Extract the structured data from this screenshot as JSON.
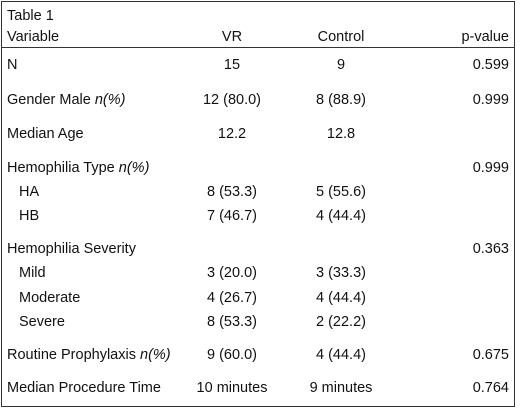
{
  "table": {
    "title": "Table 1",
    "headers": {
      "variable": "Variable",
      "vr": "VR",
      "control": "Control",
      "pvalue": "p-value"
    },
    "rows": [
      {
        "label": "N",
        "suffix": "",
        "vr": "15",
        "control": "9",
        "p": "0.599"
      },
      {
        "label": "Gender Male ",
        "suffix": "n(%)",
        "vr": "12 (80.0)",
        "control": "8 (88.9)",
        "p": "0.999"
      },
      {
        "label": "Median Age",
        "suffix": "",
        "vr": "12.2",
        "control": "12.8",
        "p": ""
      },
      {
        "label": "Hemophilia Type ",
        "suffix": "n(%)",
        "vr": "",
        "control": "",
        "p": "0.999"
      },
      {
        "label": "HA",
        "suffix": "",
        "vr": "8 (53.3)",
        "control": "5 (55.6)",
        "p": ""
      },
      {
        "label": "HB",
        "suffix": "",
        "vr": "7 (46.7)",
        "control": "4 (44.4)",
        "p": ""
      },
      {
        "label": "Hemophilia Severity",
        "suffix": "",
        "vr": "",
        "control": "",
        "p": "0.363"
      },
      {
        "label": "Mild",
        "suffix": "",
        "vr": "3 (20.0)",
        "control": "3 (33.3)",
        "p": ""
      },
      {
        "label": "Moderate",
        "suffix": "",
        "vr": "4 (26.7)",
        "control": "4 (44.4)",
        "p": ""
      },
      {
        "label": "Severe",
        "suffix": "",
        "vr": "8 (53.3)",
        "control": "2 (22.2)",
        "p": ""
      },
      {
        "label": "Routine Prophylaxis ",
        "suffix": "n(%)",
        "vr": "9 (60.0)",
        "control": "4 (44.4)",
        "p": "0.675"
      },
      {
        "label": "Median Procedure Time",
        "suffix": "",
        "vr": "10 minutes",
        "control": "9 minutes",
        "p": "0.764"
      }
    ]
  }
}
